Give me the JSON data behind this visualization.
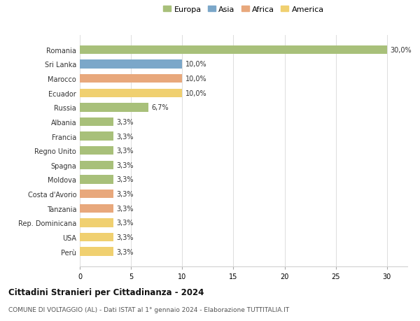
{
  "countries": [
    "Romania",
    "Sri Lanka",
    "Marocco",
    "Ecuador",
    "Russia",
    "Albania",
    "Francia",
    "Regno Unito",
    "Spagna",
    "Moldova",
    "Costa d'Avorio",
    "Tanzania",
    "Rep. Dominicana",
    "USA",
    "Perù"
  ],
  "values": [
    30.0,
    10.0,
    10.0,
    10.0,
    6.7,
    3.3,
    3.3,
    3.3,
    3.3,
    3.3,
    3.3,
    3.3,
    3.3,
    3.3,
    3.3
  ],
  "labels": [
    "30,0%",
    "10,0%",
    "10,0%",
    "10,0%",
    "6,7%",
    "3,3%",
    "3,3%",
    "3,3%",
    "3,3%",
    "3,3%",
    "3,3%",
    "3,3%",
    "3,3%",
    "3,3%",
    "3,3%"
  ],
  "colors": [
    "#a8c07a",
    "#7ba7c9",
    "#e8a87c",
    "#f0d070",
    "#a8c07a",
    "#a8c07a",
    "#a8c07a",
    "#a8c07a",
    "#a8c07a",
    "#a8c07a",
    "#e8a87c",
    "#e8a87c",
    "#f0d070",
    "#f0d070",
    "#f0d070"
  ],
  "legend_labels": [
    "Europa",
    "Asia",
    "Africa",
    "America"
  ],
  "legend_colors": [
    "#a8c07a",
    "#7ba7c9",
    "#e8a87c",
    "#f0d070"
  ],
  "title": "Cittadini Stranieri per Cittadinanza - 2024",
  "subtitle": "COMUNE DI VOLTAGGIO (AL) - Dati ISTAT al 1° gennaio 2024 - Elaborazione TUTTITALIA.IT",
  "xlim": [
    0,
    32
  ],
  "xticks": [
    0,
    5,
    10,
    15,
    20,
    25,
    30
  ],
  "bg_color": "#ffffff",
  "grid_color": "#dddddd",
  "bar_height": 0.6,
  "label_fontsize": 7,
  "ytick_fontsize": 7,
  "xtick_fontsize": 7,
  "legend_fontsize": 8,
  "title_fontsize": 8.5,
  "subtitle_fontsize": 6.5
}
